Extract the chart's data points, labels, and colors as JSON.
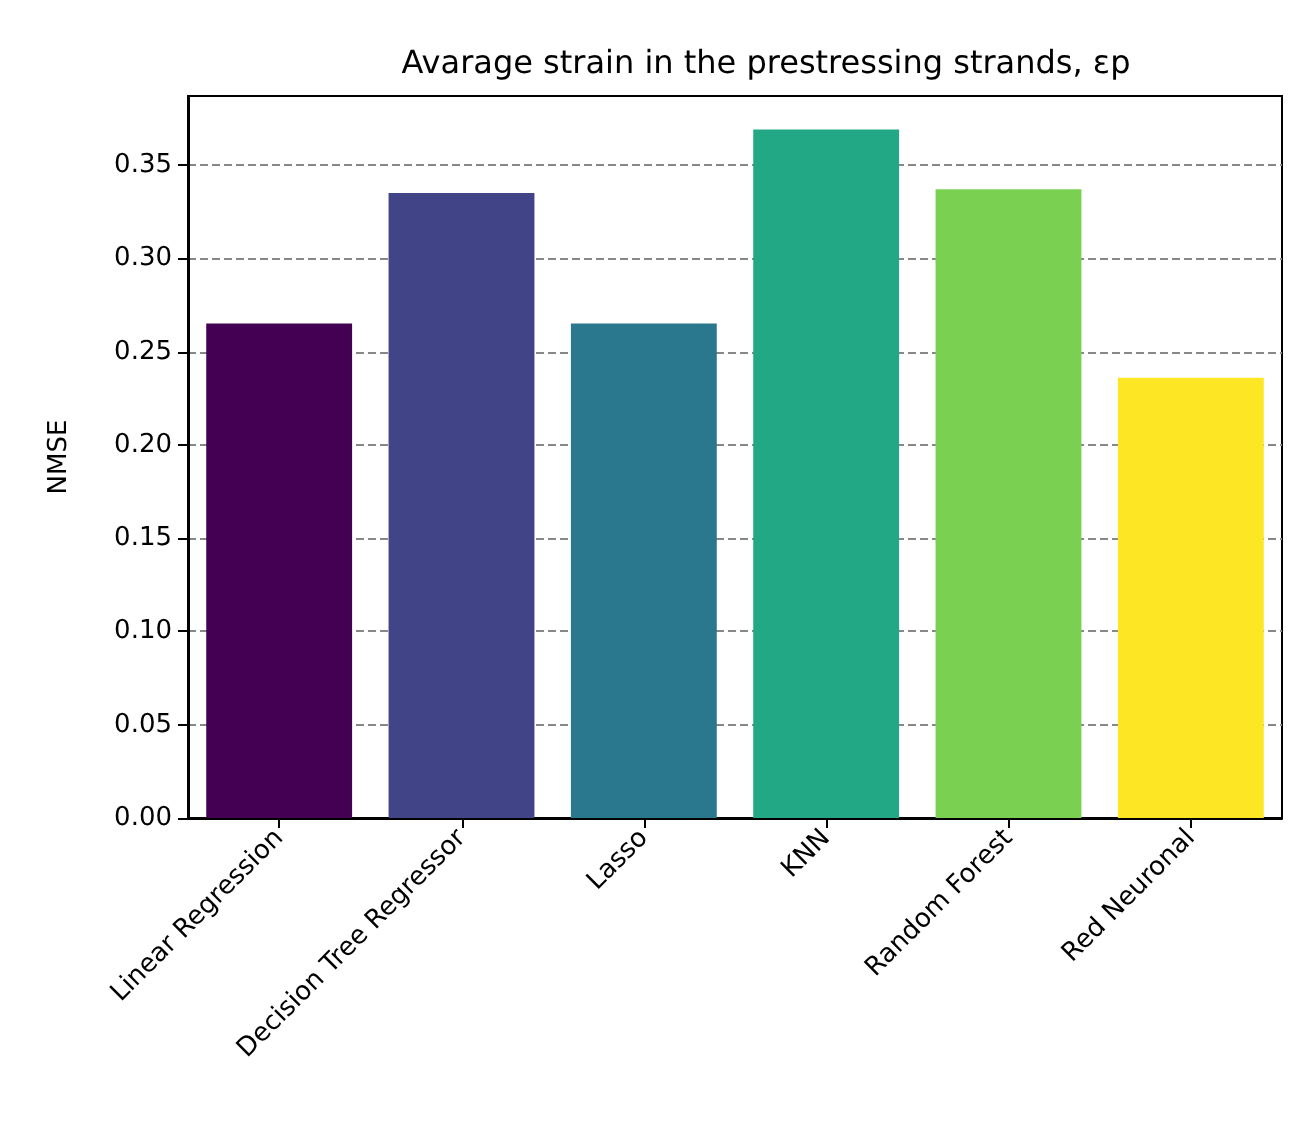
{
  "chart_data": {
    "type": "bar",
    "title": "Avarage strain in the prestressing strands, εp",
    "ylabel": "NMSE",
    "categories": [
      "Linear Regression",
      "Decision Tree Regressor",
      "Lasso",
      "KNN",
      "Random Forest",
      "Red Neuronal"
    ],
    "values": [
      0.265,
      0.335,
      0.265,
      0.369,
      0.337,
      0.236
    ],
    "colors": [
      "#440154",
      "#414487",
      "#2a788e",
      "#22a884",
      "#7ad151",
      "#fde725"
    ],
    "ylim": [
      0,
      0.387
    ],
    "yticks": [
      {
        "value": 0,
        "label": "0.00"
      },
      {
        "value": 0.05,
        "label": "0.05"
      },
      {
        "value": 0.1,
        "label": "0.10"
      },
      {
        "value": 0.15,
        "label": "0.15"
      },
      {
        "value": 0.2,
        "label": "0.20"
      },
      {
        "value": 0.25,
        "label": "0.25"
      },
      {
        "value": 0.3,
        "label": "0.30"
      },
      {
        "value": 0.35,
        "label": "0.35"
      }
    ],
    "grid": "y"
  }
}
